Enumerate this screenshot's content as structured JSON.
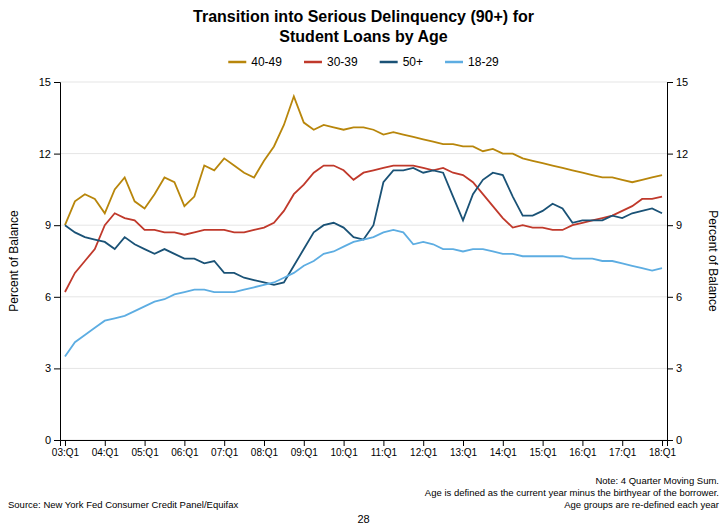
{
  "chart_data": {
    "type": "line",
    "title": "Transition into Serious Delinquency (90+) for",
    "subtitle": "Student Loans by Age",
    "ylabel": "Percent of Balance",
    "y2label": "Percent of Balance",
    "categories": [
      "03:Q1",
      null,
      null,
      null,
      "04:Q1",
      null,
      null,
      null,
      "05:Q1",
      null,
      null,
      null,
      "06:Q1",
      null,
      null,
      null,
      "07:Q1",
      null,
      null,
      null,
      "08:Q1",
      null,
      null,
      null,
      "09:Q1",
      null,
      null,
      null,
      "10:Q1",
      null,
      null,
      null,
      "11:Q1",
      null,
      null,
      null,
      "12:Q1",
      null,
      null,
      null,
      "13:Q1",
      null,
      null,
      null,
      "14:Q1",
      null,
      null,
      null,
      "15:Q1",
      null,
      null,
      null,
      "16:Q1",
      null,
      null,
      null,
      "17:Q1",
      null,
      null,
      null,
      "18:Q1"
    ],
    "ylim": [
      0,
      15
    ],
    "yticks": [
      0,
      3,
      6,
      9,
      12,
      15
    ],
    "y2lim": [
      0,
      15
    ],
    "y2ticks": [
      0,
      3,
      6,
      9,
      12,
      15
    ],
    "grid": true,
    "legend": "top",
    "series": [
      {
        "name": "40-49",
        "color": "#B8860B",
        "values": [
          9.0,
          10.0,
          10.3,
          10.1,
          9.5,
          10.5,
          11.0,
          10.0,
          9.7,
          10.3,
          11.0,
          10.8,
          9.8,
          10.2,
          11.5,
          11.3,
          11.8,
          11.5,
          11.2,
          11.0,
          11.7,
          12.3,
          13.2,
          14.4,
          13.3,
          13.0,
          13.2,
          13.1,
          13.0,
          13.1,
          13.1,
          13.0,
          12.8,
          12.9,
          12.8,
          12.7,
          12.6,
          12.5,
          12.4,
          12.4,
          12.3,
          12.3,
          12.1,
          12.2,
          12.0,
          12.0,
          11.8,
          11.7,
          11.6,
          11.5,
          11.4,
          11.3,
          11.2,
          11.1,
          11.0,
          11.0,
          10.9,
          10.8,
          10.9,
          11.0,
          11.1
        ]
      },
      {
        "name": "30-39",
        "color": "#C0392B",
        "values": [
          6.2,
          7.0,
          7.5,
          8.0,
          9.0,
          9.5,
          9.3,
          9.2,
          8.8,
          8.8,
          8.7,
          8.7,
          8.6,
          8.7,
          8.8,
          8.8,
          8.8,
          8.7,
          8.7,
          8.8,
          8.9,
          9.1,
          9.6,
          10.3,
          10.7,
          11.2,
          11.5,
          11.5,
          11.3,
          10.9,
          11.2,
          11.3,
          11.4,
          11.5,
          11.5,
          11.5,
          11.4,
          11.3,
          11.4,
          11.2,
          11.1,
          10.8,
          10.3,
          9.8,
          9.3,
          8.9,
          9.0,
          8.9,
          8.9,
          8.8,
          8.8,
          9.0,
          9.1,
          9.2,
          9.3,
          9.4,
          9.6,
          9.8,
          10.1,
          10.1,
          10.2
        ]
      },
      {
        "name": "50+",
        "color": "#1A5276",
        "values": [
          9.0,
          8.7,
          8.5,
          8.4,
          8.3,
          8.0,
          8.5,
          8.2,
          8.0,
          7.8,
          8.0,
          7.8,
          7.6,
          7.6,
          7.4,
          7.5,
          7.0,
          7.0,
          6.8,
          6.7,
          6.6,
          6.5,
          6.6,
          7.3,
          8.0,
          8.7,
          9.0,
          9.1,
          8.9,
          8.5,
          8.4,
          9.0,
          10.8,
          11.3,
          11.3,
          11.4,
          11.2,
          11.3,
          11.2,
          10.2,
          9.2,
          10.3,
          10.9,
          11.2,
          11.1,
          10.2,
          9.4,
          9.4,
          9.6,
          9.9,
          9.7,
          9.1,
          9.2,
          9.2,
          9.2,
          9.4,
          9.3,
          9.5,
          9.6,
          9.7,
          9.5
        ]
      },
      {
        "name": "18-29",
        "color": "#5DADE2",
        "values": [
          3.5,
          4.1,
          4.4,
          4.7,
          5.0,
          5.1,
          5.2,
          5.4,
          5.6,
          5.8,
          5.9,
          6.1,
          6.2,
          6.3,
          6.3,
          6.2,
          6.2,
          6.2,
          6.3,
          6.4,
          6.5,
          6.6,
          6.8,
          7.0,
          7.3,
          7.5,
          7.8,
          7.9,
          8.1,
          8.3,
          8.4,
          8.5,
          8.7,
          8.8,
          8.7,
          8.2,
          8.3,
          8.2,
          8.0,
          8.0,
          7.9,
          8.0,
          8.0,
          7.9,
          7.8,
          7.8,
          7.7,
          7.7,
          7.7,
          7.7,
          7.7,
          7.6,
          7.6,
          7.6,
          7.5,
          7.5,
          7.4,
          7.3,
          7.2,
          7.1,
          7.2
        ]
      }
    ],
    "source": "Source: New York Fed Consumer Credit Panel/Equifax",
    "note": [
      "Note: 4 Quarter Moving Sum.",
      "Age is defined as the current year minus the birthyear of the borrower.",
      "Age groups are re-defined each year"
    ],
    "page_number": "28"
  }
}
